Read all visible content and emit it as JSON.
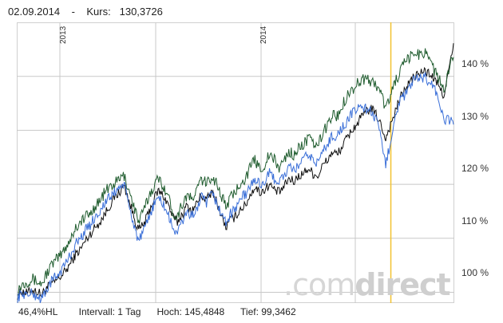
{
  "header": {
    "date": "02.09.2014",
    "separator": "-",
    "kurs_label": "Kurs:",
    "kurs_value": "130,3726"
  },
  "footer": {
    "hl": "46,4%HL",
    "intervall": "Intervall: 1 Tag",
    "hoch": "Hoch: 145,4848",
    "tief": "Tief: 99,3462"
  },
  "watermark": {
    "dot_com": ".com",
    "direct": "direct"
  },
  "chart_data": {
    "type": "line",
    "x_tick_labels": [
      "2013",
      "2014"
    ],
    "y_tick_labels": [
      "100 %",
      "110 %",
      "120 %",
      "130 %",
      "140 %"
    ],
    "ylim": [
      98,
      150
    ],
    "grid": true,
    "colors": {
      "black": "#111111",
      "green": "#1f5c2e",
      "blue": "#3a6fd8",
      "marker": "#f2c230",
      "grid": "#c8c8c8"
    },
    "marker_position": 0.855,
    "series": [
      {
        "color": "#111111",
        "values": [
          99.5,
          100.2,
          99.8,
          100.5,
          100.1,
          99.6,
          100.8,
          101.5,
          102.2,
          103.0,
          104.0,
          105.5,
          107.0,
          108.0,
          109.5,
          110.8,
          112.0,
          113.0,
          114.5,
          116.0,
          117.5,
          118.5,
          119.8,
          117.0,
          114.0,
          111.5,
          112.5,
          114.5,
          117.0,
          118.8,
          118.0,
          116.5,
          114.0,
          113.0,
          114.5,
          116.0,
          115.0,
          116.5,
          118.0,
          117.0,
          118.5,
          117.0,
          114.5,
          112.0,
          113.5,
          114.0,
          115.5,
          116.0,
          118.0,
          119.5,
          118.5,
          119.0,
          120.0,
          119.0,
          118.5,
          119.5,
          121.0,
          120.5,
          121.5,
          122.0,
          123.0,
          122.0,
          121.5,
          123.5,
          124.5,
          126.0,
          125.5,
          127.0,
          128.5,
          130.0,
          131.0,
          132.5,
          133.5,
          134.0,
          133.0,
          131.0,
          128.5,
          131.0,
          133.5,
          136.0,
          137.5,
          139.0,
          140.0,
          140.5,
          141.0,
          140.5,
          139.5,
          138.0,
          136.5,
          141.0,
          145.5
        ],
        "noise": 0.9
      },
      {
        "color": "#1f5c2e",
        "values": [
          100.5,
          101.5,
          102.0,
          102.5,
          102.0,
          101.5,
          103.5,
          105.0,
          106.0,
          107.0,
          108.5,
          110.0,
          112.0,
          113.0,
          114.0,
          114.5,
          116.0,
          117.0,
          118.5,
          119.5,
          120.0,
          121.0,
          121.5,
          119.0,
          116.0,
          113.0,
          115.0,
          117.5,
          119.5,
          121.0,
          120.0,
          118.0,
          115.0,
          114.0,
          116.5,
          118.0,
          117.0,
          119.0,
          121.0,
          120.0,
          121.5,
          120.5,
          118.0,
          116.0,
          117.5,
          118.5,
          120.5,
          121.0,
          123.0,
          124.5,
          123.0,
          123.5,
          125.5,
          124.5,
          123.0,
          124.5,
          126.0,
          125.5,
          126.5,
          127.5,
          128.5,
          127.5,
          127.0,
          129.5,
          131.0,
          133.0,
          132.5,
          134.5,
          136.5,
          137.5,
          138.5,
          139.5,
          139.5,
          139.0,
          138.5,
          137.0,
          134.0,
          136.5,
          139.0,
          141.0,
          142.5,
          143.5,
          144.5,
          144.0,
          144.5,
          144.0,
          141.0,
          139.5,
          137.0,
          141.0,
          144.5
        ],
        "noise": 1.1
      },
      {
        "color": "#3a6fd8",
        "values": [
          99.0,
          99.8,
          99.5,
          99.8,
          99.2,
          98.8,
          100.5,
          102.0,
          103.0,
          104.0,
          105.5,
          107.0,
          109.0,
          110.0,
          111.5,
          112.5,
          114.0,
          115.0,
          116.5,
          117.5,
          118.5,
          119.5,
          120.0,
          116.0,
          112.5,
          109.5,
          111.0,
          113.5,
          116.0,
          117.5,
          116.5,
          114.5,
          112.0,
          111.0,
          113.0,
          115.0,
          114.0,
          115.5,
          117.5,
          116.5,
          118.0,
          117.0,
          114.5,
          113.0,
          114.5,
          115.5,
          117.5,
          118.0,
          119.5,
          121.0,
          120.0,
          120.5,
          122.0,
          121.0,
          120.5,
          121.5,
          123.0,
          122.5,
          123.5,
          124.5,
          125.5,
          124.5,
          124.0,
          126.0,
          127.5,
          129.0,
          129.0,
          130.5,
          131.5,
          133.0,
          134.0,
          134.5,
          134.0,
          133.5,
          132.0,
          128.5,
          123.5,
          128.0,
          133.0,
          135.5,
          136.5,
          138.0,
          139.5,
          139.5,
          140.0,
          139.0,
          138.0,
          135.5,
          131.5,
          132.0,
          131.5
        ],
        "noise": 1.0
      }
    ]
  }
}
